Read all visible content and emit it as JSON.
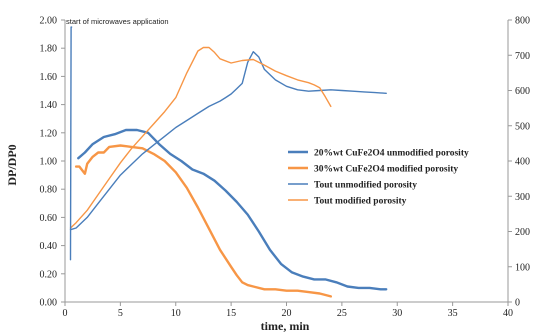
{
  "chart_data": {
    "type": "line",
    "xlabel": "time, min",
    "ylabel": "DP/DP0",
    "y2label": "",
    "xlim": [
      0,
      40
    ],
    "ylim": [
      0,
      2.0
    ],
    "y2lim": [
      0,
      800
    ],
    "x_ticks": [
      "0",
      "5",
      "10",
      "15",
      "20",
      "25",
      "30",
      "35",
      "40"
    ],
    "y_ticks": [
      "0.00",
      "0.20",
      "0.40",
      "0.60",
      "0.80",
      "1.00",
      "1.20",
      "1.40",
      "1.60",
      "1.80",
      "2.00"
    ],
    "y2_ticks": [
      "0",
      "100",
      "200",
      "300",
      "400",
      "500",
      "600",
      "700",
      "800"
    ],
    "grid": false,
    "legend_position": "center-right",
    "annotation": "start of microwaves application",
    "colors": {
      "blue": "#4a7ebb",
      "orange": "#f79646"
    },
    "series": [
      {
        "name": "20%wt CuFe2O4 unmodified porosity",
        "axis": "left",
        "color": "#4a7ebb",
        "width": 2.4,
        "x": [
          1.2,
          1.8,
          2.5,
          3.5,
          4.5,
          5.5,
          6.5,
          7.5,
          8.5,
          9.5,
          10.5,
          11.5,
          12.5,
          13.5,
          14.5,
          15.5,
          16.5,
          17.5,
          18.5,
          19.5,
          20.5,
          21.5,
          22.5,
          23.5,
          24.5,
          25.5,
          26.5,
          27.5,
          28.5,
          29.0
        ],
        "y": [
          1.02,
          1.06,
          1.12,
          1.17,
          1.19,
          1.22,
          1.22,
          1.2,
          1.12,
          1.05,
          1.0,
          0.94,
          0.91,
          0.86,
          0.79,
          0.71,
          0.62,
          0.5,
          0.37,
          0.27,
          0.21,
          0.18,
          0.16,
          0.16,
          0.14,
          0.11,
          0.1,
          0.1,
          0.09,
          0.09
        ]
      },
      {
        "name": "30%wt CuFe2O4 modified porosity",
        "axis": "left",
        "color": "#f79646",
        "width": 2.4,
        "x": [
          1.0,
          1.3,
          1.5,
          1.8,
          2.0,
          2.5,
          3.0,
          3.5,
          4.0,
          5.0,
          6.0,
          7.0,
          8.0,
          9.0,
          10.0,
          11.0,
          12.0,
          13.0,
          14.0,
          15.0,
          15.5,
          16.0,
          16.5,
          17.0,
          18.0,
          19.0,
          20.0,
          21.0,
          22.0,
          23.0,
          24.0
        ],
        "y": [
          0.96,
          0.96,
          0.94,
          0.91,
          0.98,
          1.03,
          1.06,
          1.06,
          1.1,
          1.11,
          1.1,
          1.09,
          1.05,
          1.0,
          0.92,
          0.81,
          0.67,
          0.52,
          0.37,
          0.25,
          0.19,
          0.14,
          0.12,
          0.11,
          0.09,
          0.09,
          0.08,
          0.08,
          0.07,
          0.06,
          0.04
        ]
      },
      {
        "name": "Tout unmodified porosity",
        "axis": "right",
        "color": "#4a7ebb",
        "width": 1.4,
        "x": [
          0.5,
          1.0,
          2.0,
          3.0,
          4.0,
          5.0,
          6.0,
          7.0,
          8.0,
          9.0,
          10.0,
          11.0,
          12.0,
          13.0,
          14.0,
          14.5,
          15.0,
          15.5,
          16.0,
          16.5,
          17.0,
          17.5,
          18.0,
          19.0,
          20.0,
          21.0,
          22.0,
          23.0,
          24.0,
          25.0,
          26.0,
          27.0,
          28.0,
          29.0
        ],
        "y": [
          205,
          210,
          240,
          280,
          320,
          360,
          390,
          420,
          445,
          470,
          495,
          515,
          535,
          555,
          570,
          580,
          590,
          605,
          620,
          680,
          710,
          695,
          660,
          630,
          612,
          602,
          598,
          600,
          602,
          600,
          598,
          596,
          594,
          592
        ]
      },
      {
        "name": "Tout modified porosity",
        "axis": "right",
        "color": "#f79646",
        "width": 1.4,
        "x": [
          0.5,
          1.0,
          2.0,
          3.0,
          4.0,
          5.0,
          6.0,
          7.0,
          8.0,
          9.0,
          10.0,
          11.0,
          12.0,
          12.5,
          13.0,
          13.5,
          14.0,
          15.0,
          16.0,
          17.0,
          18.0,
          19.0,
          20.0,
          21.0,
          22.0,
          22.5,
          23.0,
          23.5,
          24.0
        ],
        "y": [
          210,
          225,
          260,
          305,
          350,
          395,
          435,
          470,
          505,
          540,
          580,
          650,
          712,
          722,
          722,
          708,
          690,
          678,
          685,
          688,
          672,
          655,
          642,
          630,
          622,
          616,
          608,
          582,
          555
        ]
      },
      {
        "name": "",
        "axis": "left",
        "color": "#4a7ebb",
        "width": 1.4,
        "x": [
          0.5,
          0.55,
          0.6
        ],
        "y": [
          0.3,
          1.95,
          1.95
        ]
      }
    ]
  }
}
